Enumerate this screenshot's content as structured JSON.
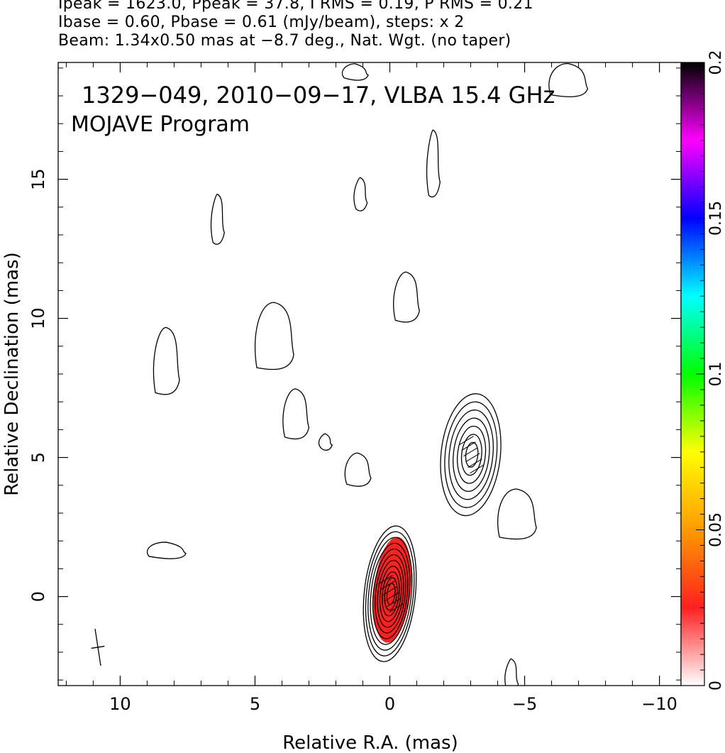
{
  "header": {
    "line1": "Ipeak = 1623.0, Ppeak = 37.8, I RMS = 0.19, P RMS = 0.21",
    "line2": "Ibase = 0.60, Pbase = 0.61 (mJy/beam), steps: x 2",
    "line3": "Beam: 1.34x0.50 mas at −8.7 deg., Nat. Wgt. (no taper)"
  },
  "annotation": {
    "line1": "1329−049, 2010−09−17, VLBA 15.4 GHz",
    "line2": "MOJAVE Program"
  },
  "chart_data": {
    "type": "contour",
    "xlabel": "Relative R.A. (mas)",
    "ylabel": "Relative Declination (mas)",
    "xlim": [
      12.3,
      -10.8
    ],
    "ylim": [
      -3.2,
      19.2
    ],
    "xticks": [
      10,
      5,
      0,
      -5,
      -10
    ],
    "xtick_labels": [
      "10",
      "5",
      "0",
      "−5",
      "−10"
    ],
    "yticks": [
      0,
      5,
      10,
      15
    ],
    "ytick_labels": [
      "0",
      "5",
      "10",
      "15"
    ],
    "colorbar": {
      "range": [
        0,
        0.2
      ],
      "ticks": [
        0,
        0.05,
        0.1,
        0.15,
        0.2
      ],
      "tick_labels": [
        "0",
        "0.05",
        "0.1",
        "0.15",
        "0.2"
      ],
      "colors": [
        "#ffffff",
        "#ff2020",
        "#ff9a00",
        "#ffff00",
        "#00ff00",
        "#00ffff",
        "#0000ff",
        "#ff00ff",
        "#000000"
      ]
    },
    "components": [
      {
        "name": "core",
        "x": 0.0,
        "y": 0.1,
        "peak": 1623.0,
        "levels": 11,
        "rx": 0.95,
        "ry": 2.45,
        "pol_fill": "#ff2020"
      },
      {
        "name": "jet-knot",
        "x": -3.0,
        "y": 5.1,
        "levels": 7,
        "rx": 1.1,
        "ry": 2.2
      }
    ],
    "jet_islands": [
      {
        "x": 1.1,
        "y": 14.5
      },
      {
        "x": -0.6,
        "y": 10.8
      },
      {
        "x": 4.3,
        "y": 9.4
      },
      {
        "x": 2.4,
        "y": 5.6
      },
      {
        "x": 1.2,
        "y": 4.6
      },
      {
        "x": -4.7,
        "y": 3.0
      },
      {
        "x": -1.6,
        "y": 15.6
      },
      {
        "x": 1.3,
        "y": 18.9
      },
      {
        "x": -6.6,
        "y": 18.6
      },
      {
        "x": 6.4,
        "y": 13.6
      },
      {
        "x": 8.3,
        "y": 8.5
      },
      {
        "x": 8.3,
        "y": 1.7
      },
      {
        "x": -4.5,
        "y": -2.8
      },
      {
        "x": 3.5,
        "y": 6.6
      }
    ],
    "beam": {
      "major": 1.34,
      "minor": 0.5,
      "pa_deg": -8.7
    },
    "evpa_sticks": "present on core and jet knot"
  }
}
